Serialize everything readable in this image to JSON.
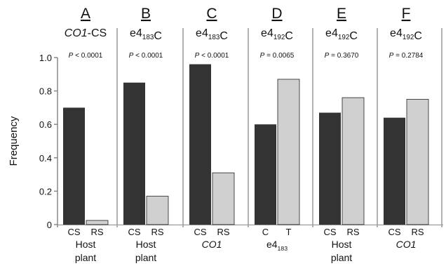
{
  "chart_data": {
    "type": "bar",
    "ylabel": "Frequency",
    "ylim": [
      0,
      1.0
    ],
    "yticks": [
      "0",
      "0.2",
      "0.4",
      "0.6",
      "0.8",
      "1.0"
    ],
    "colors": {
      "first": "#333333",
      "second": "#d0d0d0"
    },
    "panels": [
      {
        "letter": "A",
        "title": "CO1-CS",
        "title_parts": [
          {
            "t": "CO1",
            "i": true
          },
          {
            "t": "-CS"
          }
        ],
        "pvalue": "P < 0.0001",
        "categories": [
          "CS",
          "RS"
        ],
        "values": [
          0.7,
          0.025
        ],
        "group_label": [
          "Host",
          "plant"
        ]
      },
      {
        "letter": "B",
        "title": "e4183C",
        "title_parts": [
          {
            "t": "e4"
          },
          {
            "t": "183",
            "sub": true
          },
          {
            "t": "C"
          }
        ],
        "pvalue": "P < 0.0001",
        "categories": [
          "CS",
          "RS"
        ],
        "values": [
          0.85,
          0.17
        ],
        "group_label": [
          "Host",
          "plant"
        ]
      },
      {
        "letter": "C",
        "title": "e4183C",
        "title_parts": [
          {
            "t": "e4"
          },
          {
            "t": "183",
            "sub": true
          },
          {
            "t": "C"
          }
        ],
        "pvalue": "P < 0.0001",
        "categories": [
          "CS",
          "RS"
        ],
        "values": [
          0.96,
          0.31
        ],
        "group_label": [
          "CO1"
        ],
        "group_italic": true
      },
      {
        "letter": "D",
        "title": "e4192C",
        "title_parts": [
          {
            "t": "e4"
          },
          {
            "t": "192",
            "sub": true
          },
          {
            "t": "C"
          }
        ],
        "pvalue": "P = 0.0065",
        "categories": [
          "C",
          "T"
        ],
        "values": [
          0.6,
          0.87
        ],
        "group_label": [
          "e4183"
        ],
        "group_parts": [
          {
            "t": "e4"
          },
          {
            "t": "183",
            "sub": true
          }
        ]
      },
      {
        "letter": "E",
        "title": "e4192C",
        "title_parts": [
          {
            "t": "e4"
          },
          {
            "t": "192",
            "sub": true
          },
          {
            "t": "C"
          }
        ],
        "pvalue": "P = 0.3670",
        "categories": [
          "CS",
          "RS"
        ],
        "values": [
          0.67,
          0.76
        ],
        "group_label": [
          "Host",
          "plant"
        ]
      },
      {
        "letter": "F",
        "title": "e4192C",
        "title_parts": [
          {
            "t": "e4"
          },
          {
            "t": "192",
            "sub": true
          },
          {
            "t": "C"
          }
        ],
        "pvalue": "P = 0.2784",
        "categories": [
          "CS",
          "RS"
        ],
        "values": [
          0.64,
          0.75
        ],
        "group_label": [
          "CO1"
        ],
        "group_italic": true
      }
    ]
  }
}
